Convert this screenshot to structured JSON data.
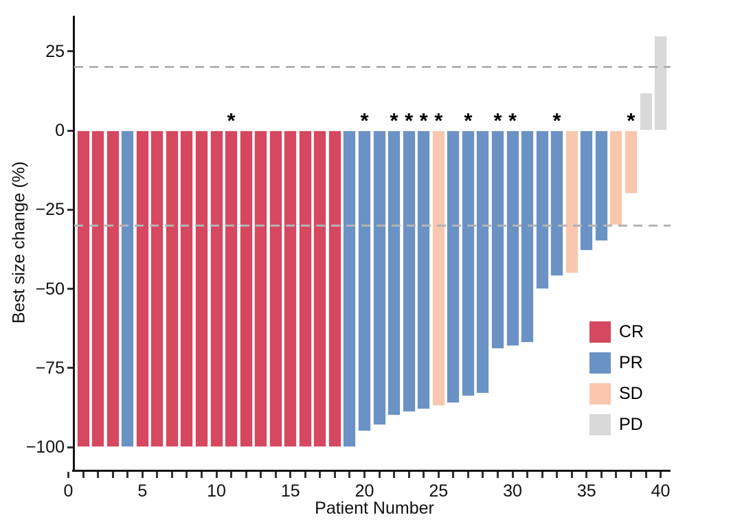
{
  "chart_data": {
    "type": "bar",
    "subtype": "waterfall-best-response",
    "title": "",
    "xlabel": "Patient Number",
    "ylabel": "Best size change (%)",
    "x_axis": {
      "labeled_ticks": [
        0,
        5,
        10,
        15,
        20,
        25,
        30,
        35,
        40
      ],
      "minor_tick_every": 1,
      "range": [
        0,
        40
      ]
    },
    "y_axis": {
      "ticks": [
        {
          "value": 25,
          "label": "25"
        },
        {
          "value": 0,
          "label": "0"
        },
        {
          "value": -25,
          "label": "−25"
        },
        {
          "value": -50,
          "label": "−50"
        },
        {
          "value": -75,
          "label": "−75"
        },
        {
          "value": -100,
          "label": "−100"
        }
      ],
      "range": [
        -107,
        37
      ]
    },
    "reference_lines": [
      {
        "y": 20,
        "style": "dashed",
        "color": "#b3b3b3"
      },
      {
        "y": -30,
        "style": "dashed",
        "color": "#b3b3b3"
      }
    ],
    "legend": [
      {
        "label": "CR",
        "color": "#d5485f"
      },
      {
        "label": "PR",
        "color": "#6b92c4"
      },
      {
        "label": "SD",
        "color": "#f8c7ad"
      },
      {
        "label": "PD",
        "color": "#d9d9d9"
      }
    ],
    "legend_position": "inside-bottom-right",
    "annotation_symbol": "*",
    "patients": [
      {
        "n": 1,
        "value": -100,
        "response": "CR",
        "star": false
      },
      {
        "n": 2,
        "value": -100,
        "response": "CR",
        "star": false
      },
      {
        "n": 3,
        "value": -100,
        "response": "CR",
        "star": false
      },
      {
        "n": 4,
        "value": -100,
        "response": "PR",
        "star": false
      },
      {
        "n": 5,
        "value": -100,
        "response": "CR",
        "star": false
      },
      {
        "n": 6,
        "value": -100,
        "response": "CR",
        "star": false
      },
      {
        "n": 7,
        "value": -100,
        "response": "CR",
        "star": false
      },
      {
        "n": 8,
        "value": -100,
        "response": "CR",
        "star": false
      },
      {
        "n": 9,
        "value": -100,
        "response": "CR",
        "star": false
      },
      {
        "n": 10,
        "value": -100,
        "response": "CR",
        "star": false
      },
      {
        "n": 11,
        "value": -100,
        "response": "CR",
        "star": true
      },
      {
        "n": 12,
        "value": -100,
        "response": "CR",
        "star": false
      },
      {
        "n": 13,
        "value": -100,
        "response": "CR",
        "star": false
      },
      {
        "n": 14,
        "value": -100,
        "response": "CR",
        "star": false
      },
      {
        "n": 15,
        "value": -100,
        "response": "CR",
        "star": false
      },
      {
        "n": 16,
        "value": -100,
        "response": "CR",
        "star": false
      },
      {
        "n": 17,
        "value": -100,
        "response": "CR",
        "star": false
      },
      {
        "n": 18,
        "value": -100,
        "response": "CR",
        "star": false
      },
      {
        "n": 19,
        "value": -100,
        "response": "PR",
        "star": false
      },
      {
        "n": 20,
        "value": -95,
        "response": "PR",
        "star": true
      },
      {
        "n": 21,
        "value": -93,
        "response": "PR",
        "star": false
      },
      {
        "n": 22,
        "value": -90,
        "response": "PR",
        "star": true
      },
      {
        "n": 23,
        "value": -89,
        "response": "PR",
        "star": true
      },
      {
        "n": 24,
        "value": -88,
        "response": "PR",
        "star": true
      },
      {
        "n": 25,
        "value": -87,
        "response": "SD",
        "star": true
      },
      {
        "n": 26,
        "value": -86,
        "response": "PR",
        "star": false
      },
      {
        "n": 27,
        "value": -84,
        "response": "PR",
        "star": true
      },
      {
        "n": 28,
        "value": -83,
        "response": "PR",
        "star": false
      },
      {
        "n": 29,
        "value": -69,
        "response": "PR",
        "star": true
      },
      {
        "n": 30,
        "value": -68,
        "response": "PR",
        "star": true
      },
      {
        "n": 31,
        "value": -67,
        "response": "PR",
        "star": false
      },
      {
        "n": 32,
        "value": -50,
        "response": "PR",
        "star": false
      },
      {
        "n": 33,
        "value": -46,
        "response": "PR",
        "star": true
      },
      {
        "n": 34,
        "value": -45,
        "response": "SD",
        "star": false
      },
      {
        "n": 35,
        "value": -38,
        "response": "PR",
        "star": false
      },
      {
        "n": 36,
        "value": -35,
        "response": "PR",
        "star": false
      },
      {
        "n": 37,
        "value": -30,
        "response": "SD",
        "star": false
      },
      {
        "n": 38,
        "value": -20,
        "response": "SD",
        "star": true
      },
      {
        "n": 39,
        "value": 12,
        "response": "PD",
        "star": false
      },
      {
        "n": 40,
        "value": 30,
        "response": "PD",
        "star": false
      }
    ]
  }
}
